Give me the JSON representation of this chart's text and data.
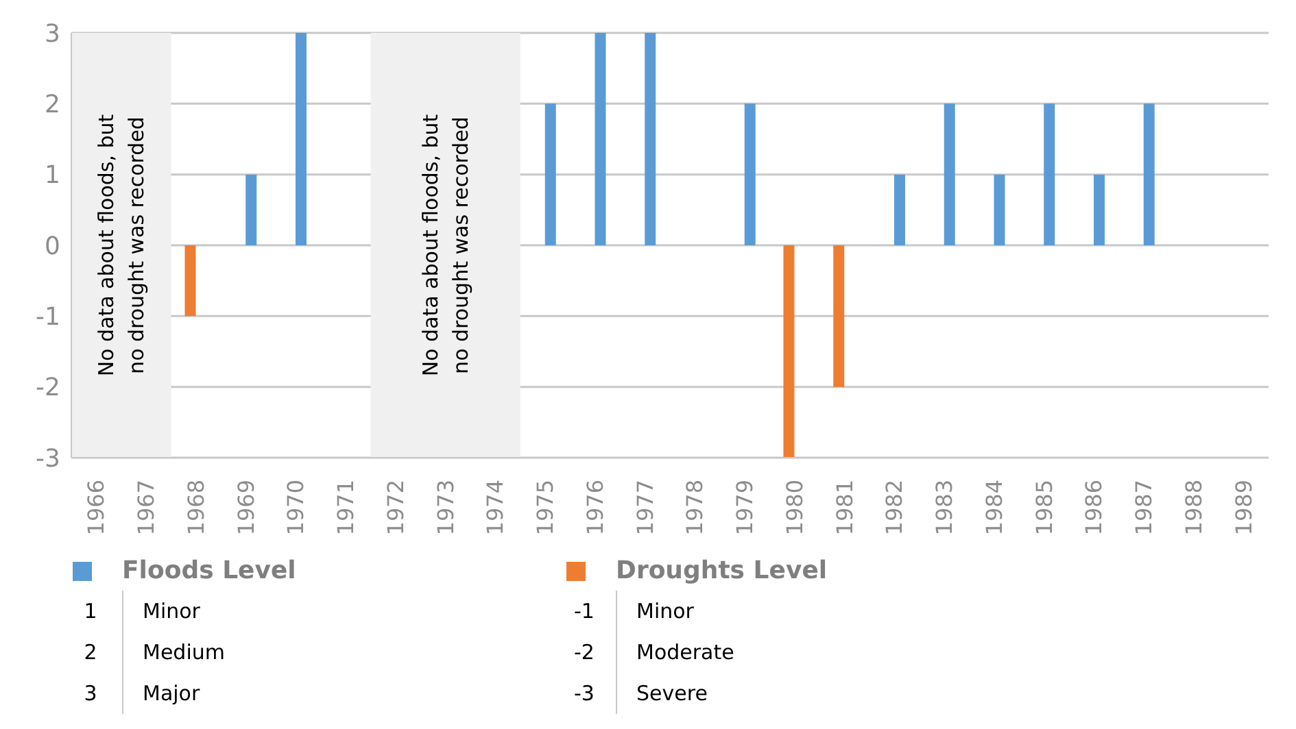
{
  "chart_data": {
    "type": "bar",
    "categories": [
      "1966",
      "1967",
      "1968",
      "1969",
      "1970",
      "1971",
      "1972",
      "1973",
      "1974",
      "1975",
      "1976",
      "1977",
      "1978",
      "1979",
      "1980",
      "1981",
      "1982",
      "1983",
      "1984",
      "1985",
      "1986",
      "1987",
      "1988",
      "1989"
    ],
    "series": [
      {
        "name": "Floods Level",
        "color": "#5b9bd5",
        "values": [
          null,
          null,
          null,
          1,
          3,
          null,
          null,
          null,
          null,
          2,
          3,
          3,
          null,
          2,
          null,
          null,
          1,
          2,
          1,
          2,
          1,
          2,
          null,
          null
        ]
      },
      {
        "name": "Droughts Level",
        "color": "#ed7d31",
        "values": [
          null,
          null,
          -1,
          null,
          null,
          null,
          null,
          null,
          null,
          null,
          null,
          null,
          null,
          null,
          -3,
          -2,
          null,
          null,
          null,
          null,
          null,
          null,
          null,
          null
        ]
      }
    ],
    "ylim": [
      -3,
      3
    ],
    "yticks": [
      -3,
      -2,
      -1,
      0,
      1,
      2,
      3
    ],
    "grid": "y",
    "legend": "bottom",
    "bands": [
      {
        "axis": "x",
        "from": "1966",
        "to": "1967",
        "label": "No data about floods, but no drought was recorded",
        "color": "#f0f0f0"
      },
      {
        "axis": "x",
        "from": "1972",
        "to": "1974",
        "label": "No  data about floods, but no drought was recorded",
        "color": "#f0f0f0"
      }
    ],
    "annotations": [
      "1 Minor",
      "2 Medium",
      "3 Major",
      "-1 Minor",
      "-2 Moderate",
      "-3 Severe"
    ]
  }
}
